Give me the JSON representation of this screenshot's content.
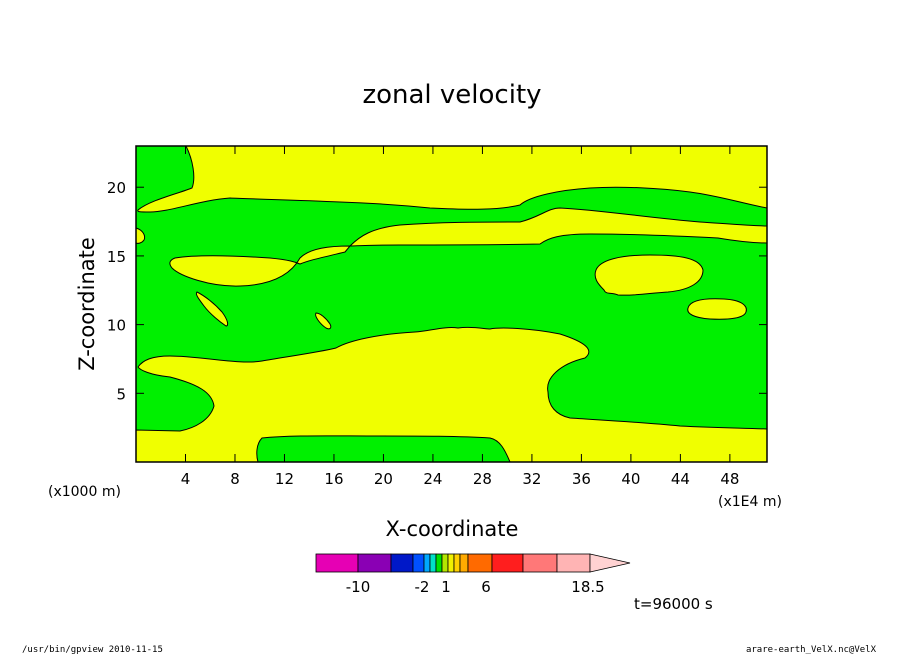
{
  "chart_data": {
    "type": "heatmap",
    "subtype": "filled-contour",
    "title": "zonal velocity",
    "xlabel": "X-coordinate",
    "ylabel": "Z-coordinate",
    "x_unit_note": "(x1E4 m)",
    "y_unit_note": "(x1000 m)",
    "xlim": [
      0,
      51
    ],
    "ylim": [
      0,
      23
    ],
    "x_ticks": [
      4,
      8,
      12,
      16,
      20,
      24,
      28,
      32,
      36,
      40,
      44,
      48
    ],
    "y_ticks": [
      5,
      10,
      15,
      20
    ],
    "colorbar": {
      "colors": [
        "#e600b4",
        "#8a00b4",
        "#0018c8",
        "#0050ff",
        "#00a8ff",
        "#00e0c8",
        "#00e000",
        "#b4e600",
        "#f0f000",
        "#ffd000",
        "#ffaa00",
        "#ff6a00",
        "#ff1e1e",
        "#ff7878",
        "#ffb4b4"
      ],
      "arrow_color": "#ffd2d2",
      "tick_labels": [
        "-10",
        "-2",
        "1",
        "6",
        "18.5"
      ]
    },
    "regions": {
      "green": "#00f000",
      "yellow": "#f0ff00"
    },
    "time_label": "t=96000 s"
  },
  "footer": {
    "left": "/usr/bin/gpview   2010-11-15",
    "right": "arare-earth_VelX.nc@VelX"
  }
}
